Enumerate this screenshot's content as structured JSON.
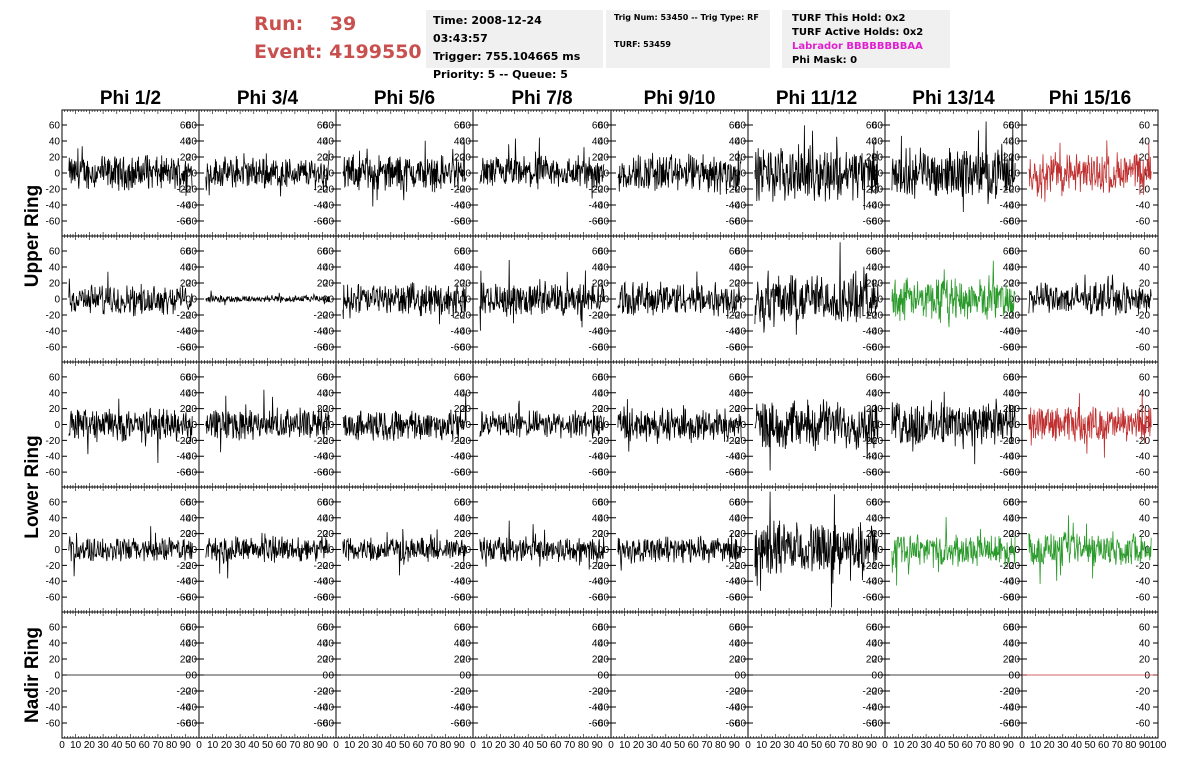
{
  "header": {
    "run_label": "Run:",
    "run_value": "39",
    "event_label": "Event:",
    "event_value": "4199550",
    "time": "Time: 2008-12-24 03:43:57",
    "trigger": "Trigger: 755.104665 ms",
    "priority": "Priority: 5 -- Queue: 5",
    "trig_num": "Trig Num: 53450 -- Trig Type: RF",
    "turf": "TURF: 53459",
    "turf_this_hold": "TURF This Hold: 0x2",
    "turf_active_holds": "TURF Active Holds: 0x2",
    "labrador": "Labrador BBBBBBBBAA",
    "phi_mask": "Phi Mask: 0"
  },
  "colors": {
    "header_red": "#c8504f",
    "labrador_magenta": "#e020d0",
    "trace_black": "#000000",
    "trace_red": "#c03030",
    "trace_green": "#2a9a2a",
    "box_bg": "#f0f0f0"
  },
  "chart_data": {
    "type": "line",
    "columns": [
      "Phi 1/2",
      "Phi 3/4",
      "Phi 5/6",
      "Phi 7/8",
      "Phi 9/10",
      "Phi 11/12",
      "Phi 13/14",
      "Phi 15/16"
    ],
    "ring_labels": [
      {
        "text": "Upper Ring",
        "rows": [
          0,
          1
        ]
      },
      {
        "text": "Lower Ring",
        "rows": [
          2,
          3
        ]
      },
      {
        "text": "Nadir Ring",
        "rows": [
          4
        ]
      }
    ],
    "rows": 5,
    "ylim": [
      -75,
      75
    ],
    "yticks": [
      -60,
      -40,
      -20,
      0,
      20,
      40,
      60
    ],
    "xlim": [
      0,
      100
    ],
    "xticks": [
      0,
      10,
      20,
      30,
      40,
      50,
      60,
      70,
      80,
      90,
      100
    ],
    "amplitudes": [
      [
        14,
        13,
        15,
        14,
        16,
        22,
        20,
        17
      ],
      [
        12,
        3,
        13,
        14,
        14,
        21,
        17,
        13
      ],
      [
        14,
        13,
        13,
        11,
        14,
        20,
        19,
        15
      ],
      [
        10,
        11,
        10,
        11,
        11,
        22,
        13,
        14
      ],
      [
        0,
        0,
        0,
        0,
        0,
        0,
        0,
        0
      ]
    ],
    "trace_colors": [
      [
        "black",
        "black",
        "black",
        "black",
        "black",
        "black",
        "black",
        "red"
      ],
      [
        "black",
        "black",
        "black",
        "black",
        "black",
        "black",
        "green",
        "black"
      ],
      [
        "black",
        "black",
        "black",
        "black",
        "black",
        "black",
        "black",
        "red"
      ],
      [
        "black",
        "black",
        "black",
        "black",
        "black",
        "black",
        "green",
        "green"
      ],
      [
        "black",
        "black",
        "black",
        "black",
        "black",
        "black",
        "black",
        "red"
      ]
    ]
  }
}
